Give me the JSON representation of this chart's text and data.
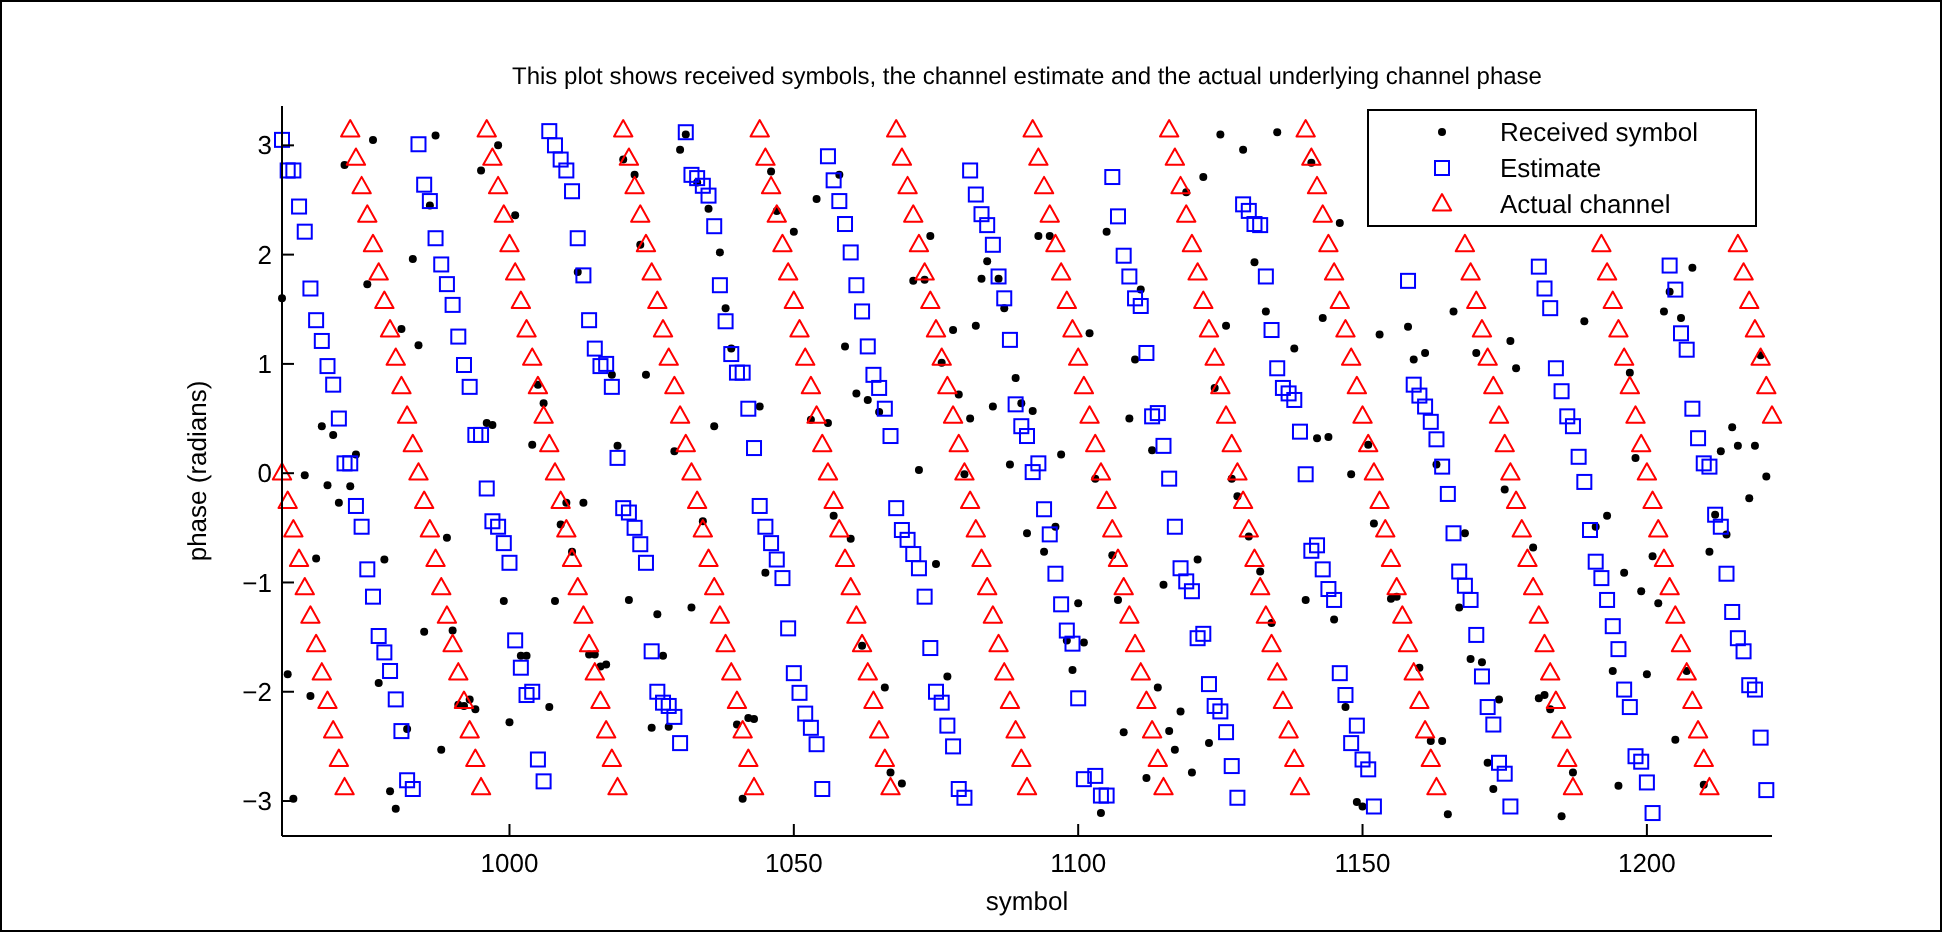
{
  "chart_data": {
    "type": "scatter",
    "title": "This plot shows received symbols, the channel estimate and the actual underlying channel phase",
    "xlabel": "symbol",
    "ylabel": "phase (radians)",
    "xlim": [
      960,
      1222
    ],
    "ylim": [
      -3.32,
      3.36
    ],
    "xticks": [
      1000,
      1050,
      1100,
      1150,
      1200
    ],
    "yticks": [
      {
        "value": -3,
        "label": "−3"
      },
      {
        "value": -2,
        "label": "−2"
      },
      {
        "value": -1,
        "label": "−1"
      },
      0,
      1,
      2,
      3
    ],
    "legend": "top right",
    "series": [
      {
        "name": "Received symbol",
        "color": "#000000",
        "marker": "circle",
        "x": [
          960,
          961,
          962,
          964,
          965,
          966,
          967,
          968,
          969,
          970,
          971,
          972,
          973,
          975,
          976,
          977,
          978,
          979,
          980,
          981,
          982,
          983,
          984,
          985,
          986,
          987,
          988,
          989,
          990,
          991,
          992,
          993,
          994,
          995,
          996,
          997,
          998,
          999,
          1000,
          1001,
          1002,
          1003,
          1004,
          1005,
          1006,
          1007,
          1008,
          1009,
          1010,
          1011,
          1012,
          1013,
          1014,
          1015,
          1016,
          1017,
          1018,
          1019,
          1020,
          1021,
          1022,
          1023,
          1024,
          1025,
          1026,
          1027,
          1028,
          1029,
          1030,
          1031,
          1032,
          1033,
          1034,
          1035,
          1036,
          1037,
          1038,
          1039,
          1040,
          1041,
          1042,
          1043,
          1044,
          1045,
          1046,
          1047,
          1050,
          1053,
          1054,
          1056,
          1057,
          1058,
          1059,
          1060,
          1061,
          1062,
          1063,
          1065,
          1066,
          1067,
          1069,
          1071,
          1072,
          1073,
          1074,
          1075,
          1076,
          1077,
          1078,
          1079,
          1080,
          1081,
          1082,
          1083,
          1084,
          1085,
          1086,
          1087,
          1088,
          1089,
          1090,
          1091,
          1092,
          1093,
          1094,
          1095,
          1096,
          1097,
          1098,
          1099,
          1100,
          1101,
          1102,
          1103,
          1104,
          1105,
          1106,
          1107,
          1108,
          1109,
          1110,
          1111,
          1112,
          1113,
          1114,
          1115,
          1116,
          1117,
          1118,
          1119,
          1120,
          1121,
          1122,
          1123,
          1124,
          1125,
          1126,
          1127,
          1128,
          1129,
          1130,
          1131,
          1132,
          1133,
          1134,
          1135,
          1138,
          1140,
          1141,
          1142,
          1143,
          1144,
          1145,
          1146,
          1147,
          1148,
          1149,
          1150,
          1151,
          1152,
          1153,
          1155,
          1156,
          1158,
          1159,
          1160,
          1161,
          1162,
          1163,
          1164,
          1165,
          1166,
          1167,
          1168,
          1169,
          1170,
          1171,
          1172,
          1173,
          1174,
          1175,
          1176,
          1177,
          1180,
          1181,
          1182,
          1183,
          1185,
          1187,
          1189,
          1191,
          1193,
          1194,
          1195,
          1196,
          1197,
          1198,
          1199,
          1200,
          1201,
          1202,
          1203,
          1204,
          1205,
          1206,
          1207,
          1208,
          1210,
          1211,
          1212,
          1213,
          1214,
          1215,
          1216,
          1218,
          1219,
          1220,
          1221
        ],
        "values": [
          1.6,
          -1.84,
          -2.98,
          -0.02,
          -2.04,
          -0.78,
          0.43,
          -0.11,
          0.35,
          -0.27,
          2.82,
          -0.12,
          0.17,
          1.73,
          3.05,
          -1.92,
          -0.79,
          -2.91,
          -3.07,
          1.32,
          -2.34,
          1.96,
          1.17,
          -1.45,
          2.45,
          3.09,
          -2.53,
          -0.59,
          -1.44,
          -2.12,
          -2.13,
          -2.07,
          -2.16,
          2.77,
          0.46,
          0.44,
          3.0,
          -1.17,
          -2.28,
          2.36,
          -1.67,
          -1.67,
          0.26,
          0.81,
          0.64,
          -2.14,
          -1.17,
          -0.47,
          -0.27,
          -0.72,
          1.84,
          -0.27,
          -1.66,
          -1.66,
          -1.77,
          -1.75,
          0.9,
          0.25,
          2.87,
          -1.16,
          2.73,
          2.09,
          0.9,
          -2.33,
          -1.29,
          -1.67,
          -2.32,
          0.2,
          2.96,
          3.1,
          -1.23,
          2.66,
          -0.44,
          2.42,
          0.43,
          2.02,
          1.51,
          1.14,
          -2.3,
          -2.98,
          -2.24,
          -2.25,
          0.61,
          -0.91,
          2.76,
          2.4,
          2.21,
          0.49,
          2.51,
          0.46,
          -0.39,
          2.73,
          1.16,
          -0.6,
          0.73,
          -1.58,
          0.67,
          0.56,
          -1.96,
          -2.74,
          -2.84,
          1.76,
          0.03,
          1.77,
          2.17,
          -0.83,
          1.01,
          -1.86,
          1.31,
          0.72,
          -0.01,
          0.5,
          1.35,
          1.78,
          1.94,
          0.61,
          1.78,
          1.51,
          0.08,
          0.87,
          0.64,
          -0.55,
          0.57,
          2.17,
          -0.72,
          2.17,
          -0.49,
          0.17,
          -1.53,
          -1.8,
          -1.19,
          -1.55,
          1.28,
          -0.05,
          -3.11,
          2.21,
          -0.75,
          -1.16,
          -2.37,
          0.5,
          1.04,
          1.68,
          -2.79,
          0.21,
          -1.96,
          -1.02,
          -2.36,
          -2.53,
          -2.18,
          2.57,
          -2.74,
          -0.79,
          2.71,
          -2.47,
          0.78,
          3.1,
          1.35,
          -0.05,
          -0.21,
          2.96,
          -0.58,
          1.93,
          -0.9,
          1.48,
          -1.37,
          3.12,
          1.14,
          -1.16,
          2.84,
          0.32,
          1.42,
          0.33,
          -1.34,
          2.29,
          -2.14,
          -0.01,
          -3.01,
          -3.05,
          0.26,
          -0.46,
          1.27,
          -1.15,
          -1.13,
          1.34,
          1.04,
          -1.78,
          1.1,
          -2.45,
          0.08,
          -2.45,
          -3.12,
          1.48,
          -1.23,
          -0.55,
          -1.7,
          1.1,
          -1.73,
          -2.65,
          -2.89,
          -2.07,
          -0.15,
          1.21,
          0.96,
          -0.68,
          -2.06,
          -2.03,
          -2.16,
          -3.14,
          -2.74,
          1.39,
          -0.49,
          -0.39,
          -1.81,
          -2.86,
          -0.91,
          0.92,
          0.14,
          -1.08,
          -1.84,
          -0.76,
          -1.19,
          1.48,
          1.66,
          -2.44,
          1.42,
          -1.81,
          1.88,
          -2.85,
          -0.72,
          -0.38,
          0.2,
          -0.56,
          0.42,
          0.25,
          -0.23,
          0.25,
          1.08,
          -0.03
        ]
      },
      {
        "name": "Estimate",
        "color": "#0000ff",
        "marker": "square",
        "x": [
          960,
          961,
          962,
          963,
          964,
          965,
          966,
          967,
          968,
          969,
          970,
          971,
          972,
          973,
          974,
          975,
          976,
          977,
          978,
          979,
          980,
          981,
          982,
          983,
          984,
          985,
          986,
          987,
          988,
          989,
          990,
          991,
          992,
          993,
          994,
          995,
          996,
          997,
          998,
          999,
          1000,
          1001,
          1002,
          1003,
          1004,
          1005,
          1006,
          1007,
          1008,
          1009,
          1010,
          1011,
          1012,
          1013,
          1014,
          1015,
          1016,
          1017,
          1018,
          1019,
          1020,
          1021,
          1022,
          1023,
          1024,
          1025,
          1026,
          1027,
          1028,
          1029,
          1030,
          1031,
          1032,
          1033,
          1034,
          1035,
          1036,
          1037,
          1038,
          1039,
          1040,
          1041,
          1042,
          1043,
          1044,
          1045,
          1046,
          1047,
          1048,
          1049,
          1050,
          1051,
          1052,
          1053,
          1054,
          1055,
          1056,
          1057,
          1058,
          1059,
          1060,
          1061,
          1062,
          1063,
          1064,
          1065,
          1066,
          1067,
          1068,
          1069,
          1070,
          1071,
          1072,
          1073,
          1074,
          1075,
          1076,
          1077,
          1078,
          1079,
          1080,
          1081,
          1082,
          1083,
          1084,
          1085,
          1086,
          1087,
          1088,
          1089,
          1090,
          1091,
          1092,
          1093,
          1094,
          1095,
          1096,
          1097,
          1098,
          1099,
          1100,
          1101,
          1103,
          1104,
          1105,
          1106,
          1107,
          1108,
          1109,
          1110,
          1111,
          1112,
          1113,
          1114,
          1115,
          1116,
          1117,
          1118,
          1119,
          1120,
          1121,
          1122,
          1123,
          1124,
          1125,
          1126,
          1127,
          1128,
          1129,
          1130,
          1131,
          1132,
          1133,
          1134,
          1135,
          1136,
          1137,
          1138,
          1139,
          1140,
          1141,
          1142,
          1143,
          1144,
          1145,
          1146,
          1147,
          1148,
          1149,
          1150,
          1151,
          1152,
          1158,
          1159,
          1160,
          1161,
          1162,
          1163,
          1164,
          1165,
          1166,
          1167,
          1168,
          1169,
          1170,
          1171,
          1172,
          1173,
          1174,
          1175,
          1176,
          1181,
          1182,
          1183,
          1184,
          1185,
          1186,
          1187,
          1188,
          1189,
          1190,
          1191,
          1192,
          1193,
          1194,
          1195,
          1196,
          1197,
          1198,
          1199,
          1200,
          1201,
          1204,
          1205,
          1206,
          1207,
          1208,
          1209,
          1210,
          1211,
          1212,
          1213,
          1214,
          1215,
          1216,
          1217,
          1218,
          1219,
          1220,
          1221
        ],
        "values": [
          3.05,
          2.77,
          2.77,
          2.44,
          2.21,
          1.69,
          1.4,
          1.21,
          0.98,
          0.81,
          0.5,
          0.09,
          0.09,
          -0.3,
          -0.49,
          -0.88,
          -1.13,
          -1.49,
          -1.64,
          -1.81,
          -2.07,
          -2.36,
          -2.81,
          -2.89,
          3.01,
          2.64,
          2.49,
          2.15,
          1.91,
          1.73,
          1.54,
          1.25,
          0.99,
          0.79,
          0.35,
          0.35,
          -0.14,
          -0.44,
          -0.49,
          -0.64,
          -0.82,
          -1.53,
          -1.78,
          -2.03,
          -2.0,
          -2.62,
          -2.82,
          3.13,
          3.0,
          2.87,
          2.77,
          2.58,
          2.15,
          1.81,
          1.4,
          1.14,
          0.98,
          1.0,
          0.79,
          0.14,
          -0.32,
          -0.36,
          -0.5,
          -0.65,
          -0.82,
          -1.63,
          -2.0,
          -2.1,
          -2.13,
          -2.23,
          -2.47,
          3.12,
          2.73,
          2.7,
          2.63,
          2.54,
          2.26,
          1.72,
          1.39,
          1.09,
          0.92,
          0.92,
          0.59,
          0.23,
          -0.3,
          -0.49,
          -0.64,
          -0.79,
          -0.96,
          -1.42,
          -1.83,
          -2.01,
          -2.2,
          -2.33,
          -2.48,
          -2.89,
          2.9,
          2.68,
          2.49,
          2.28,
          2.02,
          1.72,
          1.48,
          1.16,
          0.9,
          0.78,
          0.59,
          0.34,
          -0.32,
          -0.52,
          -0.61,
          -0.74,
          -0.87,
          -1.13,
          -1.6,
          -2.0,
          -2.1,
          -2.31,
          -2.5,
          -2.89,
          -2.97,
          2.77,
          2.55,
          2.37,
          2.27,
          2.09,
          1.8,
          1.6,
          1.22,
          0.63,
          0.43,
          0.34,
          0.01,
          0.09,
          -0.33,
          -0.56,
          -0.92,
          -1.2,
          -1.44,
          -1.56,
          -2.06,
          -2.8,
          -2.77,
          -2.95,
          -2.95,
          2.71,
          2.35,
          1.99,
          1.8,
          1.6,
          1.53,
          1.1,
          0.52,
          0.55,
          0.25,
          -0.05,
          -0.49,
          -0.87,
          -0.99,
          -1.08,
          -1.51,
          -1.47,
          -1.93,
          -2.13,
          -2.18,
          -2.37,
          -2.68,
          -2.97,
          2.46,
          2.4,
          2.28,
          2.27,
          1.8,
          1.31,
          0.96,
          0.78,
          0.73,
          0.67,
          0.38,
          -0.01,
          -0.71,
          -0.66,
          -0.88,
          -1.06,
          -1.16,
          -1.83,
          -2.03,
          -2.47,
          -2.31,
          -2.62,
          -2.71,
          -3.05,
          1.76,
          0.81,
          0.71,
          0.61,
          0.47,
          0.31,
          0.06,
          -0.19,
          -0.55,
          -0.9,
          -1.03,
          -1.16,
          -1.48,
          -1.86,
          -2.14,
          -2.3,
          -2.65,
          -2.75,
          -3.05,
          1.89,
          1.69,
          1.51,
          0.96,
          0.75,
          0.52,
          0.43,
          0.15,
          -0.08,
          -0.52,
          -0.81,
          -0.96,
          -1.16,
          -1.4,
          -1.61,
          -1.98,
          -2.14,
          -2.59,
          -2.64,
          -2.83,
          -3.11,
          1.9,
          1.68,
          1.28,
          1.13,
          0.59,
          0.32,
          0.09,
          0.06,
          -0.38,
          -0.49,
          -0.92,
          -1.27,
          -1.51,
          -1.63,
          -1.94,
          -1.98,
          -2.42,
          -2.9
        ]
      },
      {
        "name": "Actual channel",
        "color": "#ff0000",
        "marker": "triangle",
        "x": [
          960,
          961,
          962,
          963,
          964,
          965,
          966,
          967,
          968,
          969,
          970,
          971,
          972,
          973,
          974,
          975,
          976,
          977,
          978,
          979,
          980,
          981,
          982,
          983,
          984,
          985,
          986,
          987,
          988,
          989,
          990,
          991,
          992,
          993,
          994,
          995,
          996,
          997,
          998,
          999,
          1000,
          1001,
          1002,
          1003,
          1004,
          1005,
          1006,
          1007,
          1008,
          1009,
          1010,
          1011,
          1012,
          1013,
          1014,
          1015,
          1016,
          1017,
          1018,
          1019,
          1020,
          1021,
          1022,
          1023,
          1024,
          1025,
          1026,
          1027,
          1028,
          1029,
          1030,
          1031,
          1032,
          1033,
          1034,
          1035,
          1036,
          1037,
          1038,
          1039,
          1040,
          1041,
          1042,
          1043,
          1044,
          1045,
          1046,
          1047,
          1048,
          1049,
          1050,
          1051,
          1052,
          1053,
          1054,
          1055,
          1056,
          1057,
          1058,
          1059,
          1060,
          1061,
          1062,
          1063,
          1064,
          1065,
          1066,
          1067,
          1068,
          1069,
          1070,
          1071,
          1072,
          1073,
          1074,
          1075,
          1076,
          1077,
          1078,
          1079,
          1080,
          1081,
          1082,
          1083,
          1084,
          1085,
          1086,
          1087,
          1088,
          1089,
          1090,
          1091,
          1092,
          1093,
          1094,
          1095,
          1096,
          1097,
          1098,
          1099,
          1100,
          1101,
          1102,
          1103,
          1104,
          1105,
          1106,
          1107,
          1108,
          1109,
          1110,
          1111,
          1112,
          1113,
          1114,
          1115,
          1116,
          1117,
          1118,
          1119,
          1120,
          1121,
          1122,
          1123,
          1124,
          1125,
          1126,
          1127,
          1128,
          1129,
          1130,
          1131,
          1132,
          1133,
          1134,
          1135,
          1136,
          1137,
          1138,
          1139,
          1140,
          1141,
          1142,
          1143,
          1144,
          1145,
          1146,
          1147,
          1148,
          1149,
          1150,
          1151,
          1152,
          1153,
          1154,
          1155,
          1156,
          1157,
          1158,
          1159,
          1160,
          1161,
          1162,
          1163,
          1168,
          1169,
          1170,
          1171,
          1172,
          1173,
          1174,
          1175,
          1176,
          1177,
          1178,
          1179,
          1180,
          1181,
          1182,
          1183,
          1184,
          1185,
          1186,
          1187,
          1192,
          1193,
          1194,
          1195,
          1196,
          1197,
          1198,
          1199,
          1200,
          1201,
          1202,
          1203,
          1204,
          1205,
          1206,
          1207,
          1208,
          1209,
          1210,
          1211,
          1216,
          1217,
          1218,
          1219,
          1220,
          1221,
          1222
        ],
        "values": [
          0,
          -0.26,
          -0.52,
          -0.79,
          -1.05,
          -1.31,
          -1.57,
          -1.83,
          -2.09,
          -2.36,
          -2.62,
          -2.88,
          3.14,
          2.88,
          2.62,
          2.36,
          2.09,
          1.83,
          1.57,
          1.31,
          1.05,
          0.79,
          0.52,
          0.26,
          0,
          -0.26,
          -0.52,
          -0.79,
          -1.05,
          -1.31,
          -1.57,
          -1.83,
          -2.09,
          -2.36,
          -2.62,
          -2.88,
          3.14,
          2.88,
          2.62,
          2.36,
          2.09,
          1.83,
          1.57,
          1.31,
          1.05,
          0.79,
          0.52,
          0.26,
          0,
          -0.26,
          -0.52,
          -0.79,
          -1.05,
          -1.31,
          -1.57,
          -1.83,
          -2.09,
          -2.36,
          -2.62,
          -2.88,
          3.14,
          2.88,
          2.62,
          2.36,
          2.09,
          1.83,
          1.57,
          1.31,
          1.05,
          0.79,
          0.52,
          0.26,
          0,
          -0.26,
          -0.52,
          -0.79,
          -1.05,
          -1.31,
          -1.57,
          -1.83,
          -2.09,
          -2.36,
          -2.62,
          -2.88,
          3.14,
          2.88,
          2.62,
          2.36,
          2.09,
          1.83,
          1.57,
          1.31,
          1.05,
          0.79,
          0.52,
          0.26,
          0,
          -0.26,
          -0.52,
          -0.79,
          -1.05,
          -1.31,
          -1.57,
          -1.83,
          -2.09,
          -2.36,
          -2.62,
          -2.88,
          3.14,
          2.88,
          2.62,
          2.36,
          2.09,
          1.83,
          1.57,
          1.31,
          1.05,
          0.79,
          0.52,
          0.26,
          0,
          -0.26,
          -0.52,
          -0.79,
          -1.05,
          -1.31,
          -1.57,
          -1.83,
          -2.09,
          -2.36,
          -2.62,
          -2.88,
          3.14,
          2.88,
          2.62,
          2.36,
          2.09,
          1.83,
          1.57,
          1.31,
          1.05,
          0.79,
          0.52,
          0.26,
          0,
          -0.26,
          -0.52,
          -0.79,
          -1.05,
          -1.31,
          -1.57,
          -1.83,
          -2.09,
          -2.36,
          -2.62,
          -2.88,
          3.14,
          2.88,
          2.62,
          2.36,
          2.09,
          1.83,
          1.57,
          1.31,
          1.05,
          0.79,
          0.52,
          0.26,
          0,
          -0.26,
          -0.52,
          -0.79,
          -1.05,
          -1.31,
          -1.57,
          -1.83,
          -2.09,
          -2.36,
          -2.62,
          -2.88,
          3.14,
          2.88,
          2.62,
          2.36,
          2.09,
          1.83,
          1.57,
          1.31,
          1.05,
          0.79,
          0.52,
          0.26,
          0,
          -0.26,
          -0.52,
          -0.79,
          -1.05,
          -1.31,
          -1.57,
          -1.83,
          -2.09,
          -2.36,
          -2.62,
          -2.88,
          2.09,
          1.83,
          1.57,
          1.31,
          1.05,
          0.79,
          0.52,
          0.26,
          0,
          -0.26,
          -0.52,
          -0.79,
          -1.05,
          -1.31,
          -1.57,
          -1.83,
          -2.09,
          -2.36,
          -2.62,
          -2.88,
          2.09,
          1.83,
          1.57,
          1.31,
          1.05,
          0.79,
          0.52,
          0.26,
          0,
          -0.26,
          -0.52,
          -0.79,
          -1.05,
          -1.31,
          -1.57,
          -1.83,
          -2.09,
          -2.36,
          -2.62,
          -2.88,
          2.09,
          1.83,
          1.57,
          1.31,
          1.05,
          0.79,
          0.52
        ]
      }
    ]
  }
}
